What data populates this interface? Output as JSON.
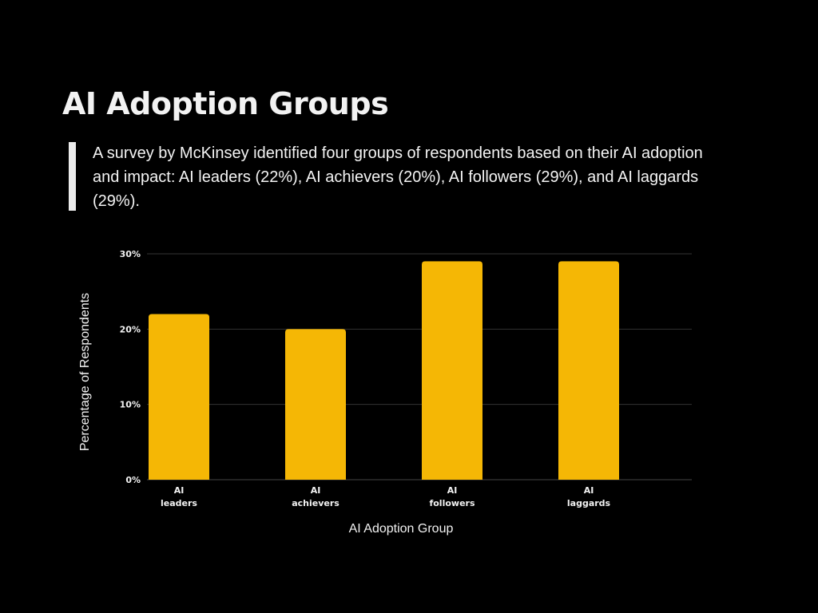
{
  "title": "AI Adoption Groups",
  "description": "A survey by McKinsey identified four groups of respondents based on their AI adoption and impact: AI leaders (22%), AI achievers (20%), AI followers (29%), and AI laggards (29%).",
  "colors": {
    "background": "#000000",
    "bar": "#f5b705",
    "grid": "#333333",
    "text": "#f2f2f2"
  },
  "chart_data": {
    "type": "bar",
    "categories": [
      [
        "AI",
        "leaders"
      ],
      [
        "AI",
        "achievers"
      ],
      [
        "AI",
        "followers"
      ],
      [
        "AI",
        "laggards"
      ]
    ],
    "values": [
      22,
      20,
      29,
      29
    ],
    "ylim": [
      0,
      30
    ],
    "yticks": [
      0,
      10,
      20,
      30
    ],
    "ytick_labels": [
      "0%",
      "10%",
      "20%",
      "30%"
    ],
    "xlabel": "AI Adoption Group",
    "ylabel": "Percentage of Respondents",
    "grid": true
  }
}
